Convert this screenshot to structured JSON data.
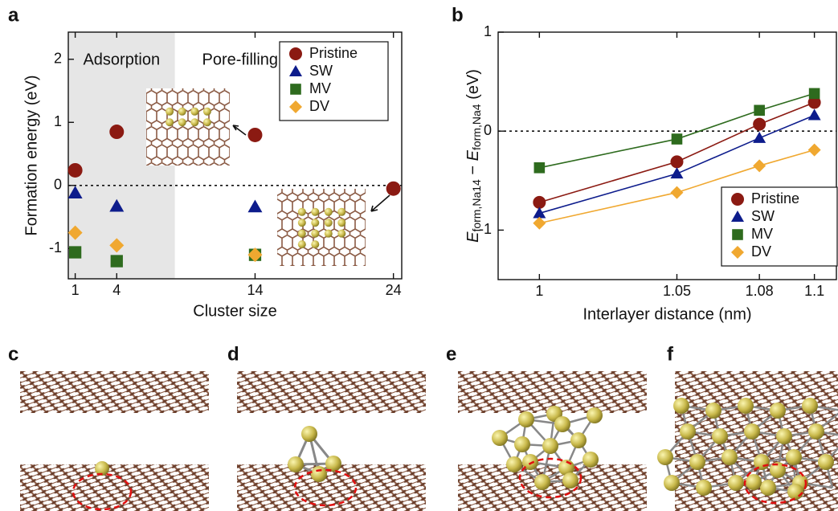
{
  "chart_data": [
    {
      "type": "scatter",
      "panel": "a",
      "xlabel": "Cluster size",
      "ylabel": "Formation energy (eV)",
      "x": [
        1,
        4,
        14,
        24
      ],
      "series": [
        {
          "name": "Pristine",
          "color": "#8b1a12",
          "marker": "circle",
          "values": [
            0.24,
            0.85,
            0.8,
            -0.05
          ]
        },
        {
          "name": "SW",
          "color": "#0d1c8c",
          "marker": "triangle",
          "values": [
            -0.12,
            -0.33,
            -0.34,
            null
          ]
        },
        {
          "name": "MV",
          "color": "#2e6b1e",
          "marker": "square",
          "values": [
            -1.06,
            -1.2,
            -1.1,
            null
          ]
        },
        {
          "name": "DV",
          "color": "#f0a830",
          "marker": "diamond",
          "values": [
            -0.75,
            -0.95,
            -1.1,
            null
          ]
        }
      ],
      "xlim": [
        0.5,
        24.6
      ],
      "ylim": [
        -1.48,
        2.43
      ],
      "xticks": [
        1,
        4,
        14,
        24
      ],
      "yticks": [
        -1,
        0,
        1,
        2
      ],
      "hline": 0,
      "shaded_xlim": [
        0.5,
        8.2
      ],
      "region_labels": [
        "Adsorption",
        "Pore-filling"
      ],
      "legend": "upper right"
    },
    {
      "type": "line",
      "panel": "b",
      "xlabel": "Interlayer distance (nm)",
      "ylabel": [
        "E",
        "form,Na14",
        " − ",
        "E",
        "form,Na4",
        " (eV)"
      ],
      "x": [
        1,
        1.05,
        1.08,
        1.1
      ],
      "series": [
        {
          "name": "Pristine",
          "color": "#8b1a12",
          "marker": "circle",
          "values": [
            -0.72,
            -0.31,
            0.07,
            0.29
          ]
        },
        {
          "name": "SW",
          "color": "#0d1c8c",
          "marker": "triangle",
          "values": [
            -0.83,
            -0.43,
            -0.07,
            0.16
          ]
        },
        {
          "name": "MV",
          "color": "#2e6b1e",
          "marker": "square",
          "values": [
            -0.37,
            -0.08,
            0.21,
            0.38
          ]
        },
        {
          "name": "DV",
          "color": "#f0a830",
          "marker": "diamond",
          "values": [
            -0.93,
            -0.62,
            -0.35,
            -0.19
          ]
        }
      ],
      "xlim": [
        0.985,
        1.108
      ],
      "ylim": [
        -1.5,
        1.0
      ],
      "xticks": [
        1,
        1.05,
        1.08,
        1.1
      ],
      "yticks": [
        -1,
        0,
        1
      ],
      "hline": 0,
      "legend": "lower right"
    }
  ],
  "panel_labels": [
    "c",
    "d",
    "e",
    "f"
  ]
}
